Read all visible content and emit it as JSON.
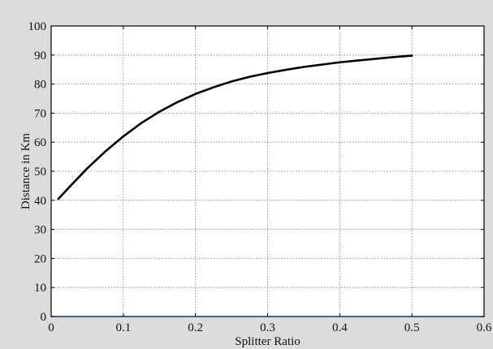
{
  "chart_data": {
    "type": "line",
    "title": "",
    "xlabel": "Splitter Ratio",
    "ylabel": "Distance in Km",
    "xlim": [
      0,
      0.6
    ],
    "ylim": [
      0,
      100
    ],
    "x_ticks": [
      0,
      0.1,
      0.2,
      0.3,
      0.4,
      0.5,
      0.6
    ],
    "x_tick_labels": [
      "0",
      "0.1",
      "0.2",
      "0.3",
      "0.4",
      "0.5",
      "0.6"
    ],
    "y_ticks": [
      0,
      10,
      20,
      30,
      40,
      50,
      60,
      70,
      80,
      90,
      100
    ],
    "y_tick_labels": [
      "0",
      "10",
      "20",
      "30",
      "40",
      "50",
      "60",
      "70",
      "80",
      "90",
      "100"
    ],
    "grid": true,
    "series": [
      {
        "color": "#000000",
        "x": [
          0.01,
          0.025,
          0.05,
          0.075,
          0.1,
          0.125,
          0.15,
          0.175,
          0.2,
          0.225,
          0.25,
          0.275,
          0.3,
          0.325,
          0.35,
          0.375,
          0.4,
          0.425,
          0.45,
          0.475,
          0.5
        ],
        "y": [
          40.5,
          44.5,
          51.0,
          56.8,
          62.0,
          66.6,
          70.5,
          73.8,
          76.6,
          78.9,
          80.9,
          82.5,
          83.8,
          84.9,
          85.9,
          86.7,
          87.5,
          88.1,
          88.7,
          89.3,
          89.8
        ]
      }
    ]
  }
}
